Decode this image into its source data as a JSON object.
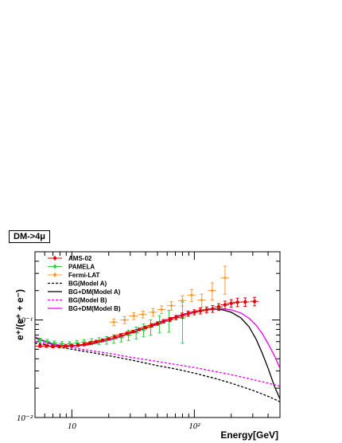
{
  "chart_data": {
    "type": "scatter",
    "title": "",
    "annotation": "DM->4μ",
    "xlabel": "Energy[GeV]",
    "ylabel": "e⁺/(e⁺ + e⁻)",
    "x_scale": "log",
    "y_scale": "log",
    "xlim": [
      5,
      500
    ],
    "ylim": [
      0.01,
      0.5
    ],
    "x_tick_labels": [
      "10",
      "10²"
    ],
    "y_tick_labels": [
      "10⁻²",
      "10⁻¹"
    ],
    "legend_position": "top-left",
    "grid": false,
    "series": [
      {
        "name": "AMS-02",
        "kind": "points",
        "color": "#e00000",
        "marker": "circle",
        "x": [
          5.5,
          6.2,
          7,
          7.9,
          8.9,
          10,
          11.2,
          12.6,
          14.1,
          15.8,
          17.8,
          20,
          22.4,
          25.1,
          28.2,
          31.6,
          35.5,
          39.8,
          44.7,
          50.1,
          56.2,
          63.1,
          70.8,
          79.4,
          89.1,
          100,
          112,
          126,
          141,
          158,
          178,
          200,
          225,
          260,
          310
        ],
        "y": [
          0.054,
          0.054,
          0.0535,
          0.0535,
          0.054,
          0.0545,
          0.055,
          0.056,
          0.058,
          0.06,
          0.062,
          0.064,
          0.067,
          0.07,
          0.073,
          0.076,
          0.08,
          0.084,
          0.088,
          0.092,
          0.097,
          0.101,
          0.106,
          0.111,
          0.116,
          0.12,
          0.124,
          0.127,
          0.13,
          0.136,
          0.143,
          0.148,
          0.152,
          0.153,
          0.155
        ],
        "xerr_rel": 0.08,
        "yerr_rel": [
          0.03,
          0.03,
          0.03,
          0.03,
          0.03,
          0.03,
          0.03,
          0.03,
          0.03,
          0.03,
          0.03,
          0.03,
          0.03,
          0.03,
          0.03,
          0.03,
          0.03,
          0.03,
          0.04,
          0.04,
          0.04,
          0.05,
          0.05,
          0.06,
          0.06,
          0.06,
          0.07,
          0.07,
          0.08,
          0.08,
          0.09,
          0.09,
          0.1,
          0.1,
          0.1
        ]
      },
      {
        "name": "PAMELA",
        "kind": "points",
        "color": "#2ecc40",
        "marker": "circle",
        "x": [
          5.5,
          6.3,
          7.2,
          8.3,
          9.6,
          11,
          12.6,
          14.5,
          16.7,
          19.2,
          22,
          25.3,
          29,
          33.5,
          38.5,
          44,
          52,
          62,
          80
        ],
        "y": [
          0.062,
          0.06,
          0.058,
          0.057,
          0.057,
          0.058,
          0.059,
          0.06,
          0.061,
          0.062,
          0.064,
          0.066,
          0.07,
          0.074,
          0.079,
          0.085,
          0.092,
          0.1,
          0.105
        ],
        "xerr_rel": 0.06,
        "yerr_rel": [
          0.05,
          0.05,
          0.05,
          0.05,
          0.05,
          0.06,
          0.06,
          0.07,
          0.08,
          0.09,
          0.1,
          0.1,
          0.12,
          0.14,
          0.15,
          0.18,
          0.2,
          0.25,
          0.45
        ]
      },
      {
        "name": "Fermi-LAT",
        "kind": "points",
        "color": "#ff9933",
        "marker": "circle",
        "x": [
          22,
          27,
          32,
          38,
          46,
          54,
          65,
          80,
          95,
          115,
          140,
          178
        ],
        "y": [
          0.095,
          0.1,
          0.11,
          0.114,
          0.12,
          0.128,
          0.14,
          0.158,
          0.18,
          0.16,
          0.2,
          0.27
        ],
        "xerr_rel": 0.08,
        "yerr_rel": [
          0.08,
          0.08,
          0.08,
          0.08,
          0.09,
          0.09,
          0.1,
          0.12,
          0.14,
          0.15,
          0.2,
          0.32
        ]
      },
      {
        "name": "BG(Model A)",
        "kind": "line",
        "color": "#000000",
        "dash": "3,2",
        "x": [
          5,
          7,
          10,
          15,
          20,
          30,
          50,
          70,
          100,
          150,
          200,
          300,
          400,
          500
        ],
        "y": [
          0.058,
          0.054,
          0.05,
          0.046,
          0.043,
          0.039,
          0.034,
          0.0315,
          0.0285,
          0.025,
          0.0225,
          0.019,
          0.0165,
          0.0145
        ]
      },
      {
        "name": "BG+DM(Model A)",
        "kind": "line",
        "color": "#000000",
        "dash": "",
        "x": [
          5,
          6,
          7,
          8,
          10,
          13,
          16,
          20,
          25,
          30,
          40,
          50,
          60,
          70,
          80,
          90,
          100,
          115,
          130,
          150,
          170,
          200,
          240,
          280,
          320,
          360,
          400,
          450,
          500
        ],
        "y": [
          0.066,
          0.06,
          0.056,
          0.054,
          0.054,
          0.056,
          0.059,
          0.063,
          0.068,
          0.074,
          0.083,
          0.092,
          0.1,
          0.107,
          0.113,
          0.118,
          0.122,
          0.126,
          0.128,
          0.129,
          0.127,
          0.12,
          0.105,
          0.085,
          0.063,
          0.045,
          0.032,
          0.021,
          0.0155
        ]
      },
      {
        "name": "BG(Model B)",
        "kind": "line",
        "color": "#ee00ee",
        "dash": "3,2",
        "x": [
          5,
          7,
          10,
          15,
          20,
          30,
          50,
          70,
          100,
          150,
          200,
          300,
          400,
          500
        ],
        "y": [
          0.06,
          0.056,
          0.052,
          0.048,
          0.0455,
          0.0415,
          0.0375,
          0.035,
          0.0325,
          0.0295,
          0.0275,
          0.0245,
          0.0225,
          0.021
        ]
      },
      {
        "name": "BG+DM(Model B)",
        "kind": "line",
        "color": "#ee00ee",
        "dash": "",
        "x": [
          5,
          6,
          7,
          8,
          10,
          13,
          16,
          20,
          25,
          30,
          40,
          50,
          60,
          70,
          80,
          90,
          100,
          115,
          130,
          150,
          170,
          200,
          240,
          280,
          320,
          360,
          400,
          450,
          500
        ],
        "y": [
          0.067,
          0.061,
          0.057,
          0.055,
          0.054,
          0.055,
          0.058,
          0.062,
          0.067,
          0.073,
          0.082,
          0.091,
          0.099,
          0.106,
          0.112,
          0.117,
          0.121,
          0.125,
          0.128,
          0.13,
          0.13,
          0.127,
          0.118,
          0.104,
          0.088,
          0.072,
          0.057,
          0.043,
          0.032
        ]
      }
    ]
  }
}
